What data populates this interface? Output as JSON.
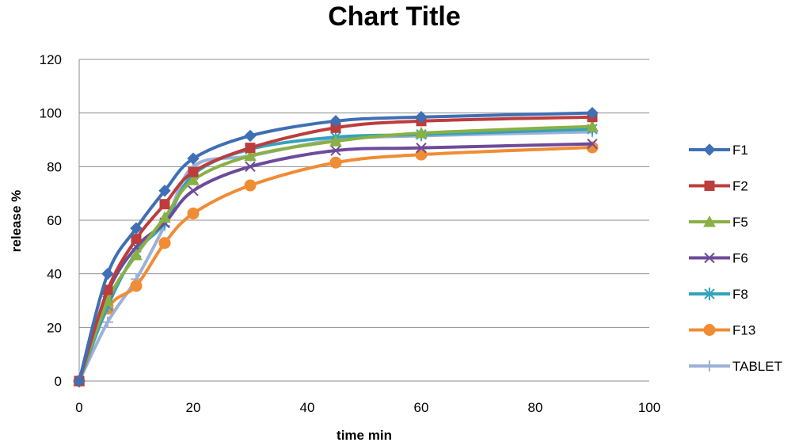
{
  "chart_data": {
    "type": "line",
    "title": "Chart Title",
    "xlabel": "time min",
    "ylabel": "release %",
    "xlim": [
      0,
      100
    ],
    "ylim": [
      0,
      120
    ],
    "x_ticks": [
      0,
      20,
      40,
      60,
      80,
      100
    ],
    "y_ticks": [
      0,
      20,
      40,
      60,
      80,
      100,
      120
    ],
    "grid": "horizontal",
    "legend_position": "right",
    "x": [
      0,
      5,
      10,
      15,
      20,
      30,
      45,
      60,
      90
    ],
    "series": [
      {
        "name": "F1",
        "color": "#3f6fb4",
        "marker": "diamond",
        "values": [
          0,
          40,
          57,
          71,
          83,
          91.5,
          97,
          98.5,
          100
        ]
      },
      {
        "name": "F2",
        "color": "#bd3c3c",
        "marker": "square",
        "values": [
          0,
          34,
          53,
          66,
          78,
          87,
          94.5,
          97,
          98.5
        ]
      },
      {
        "name": "F5",
        "color": "#8ab044",
        "marker": "triangle",
        "values": [
          0,
          30,
          47,
          61,
          75,
          84,
          89.5,
          92.5,
          95
        ]
      },
      {
        "name": "F6",
        "color": "#6e4a9a",
        "marker": "x",
        "values": [
          0,
          33,
          50,
          59,
          71,
          80,
          86,
          87,
          88.5
        ]
      },
      {
        "name": "F8",
        "color": "#33a3ba",
        "marker": "star",
        "values": [
          0,
          28,
          48,
          59,
          77,
          86.5,
          91,
          92,
          94
        ]
      },
      {
        "name": "F13",
        "color": "#f08c34",
        "marker": "circle",
        "values": [
          0,
          27,
          35.5,
          51.5,
          62.5,
          73,
          81.5,
          84.5,
          87.2
        ]
      },
      {
        "name": "TABLET",
        "color": "#9db0d8",
        "marker": "plus",
        "values": [
          0,
          22,
          38,
          58,
          80,
          84,
          90,
          91.5,
          93
        ]
      }
    ]
  }
}
